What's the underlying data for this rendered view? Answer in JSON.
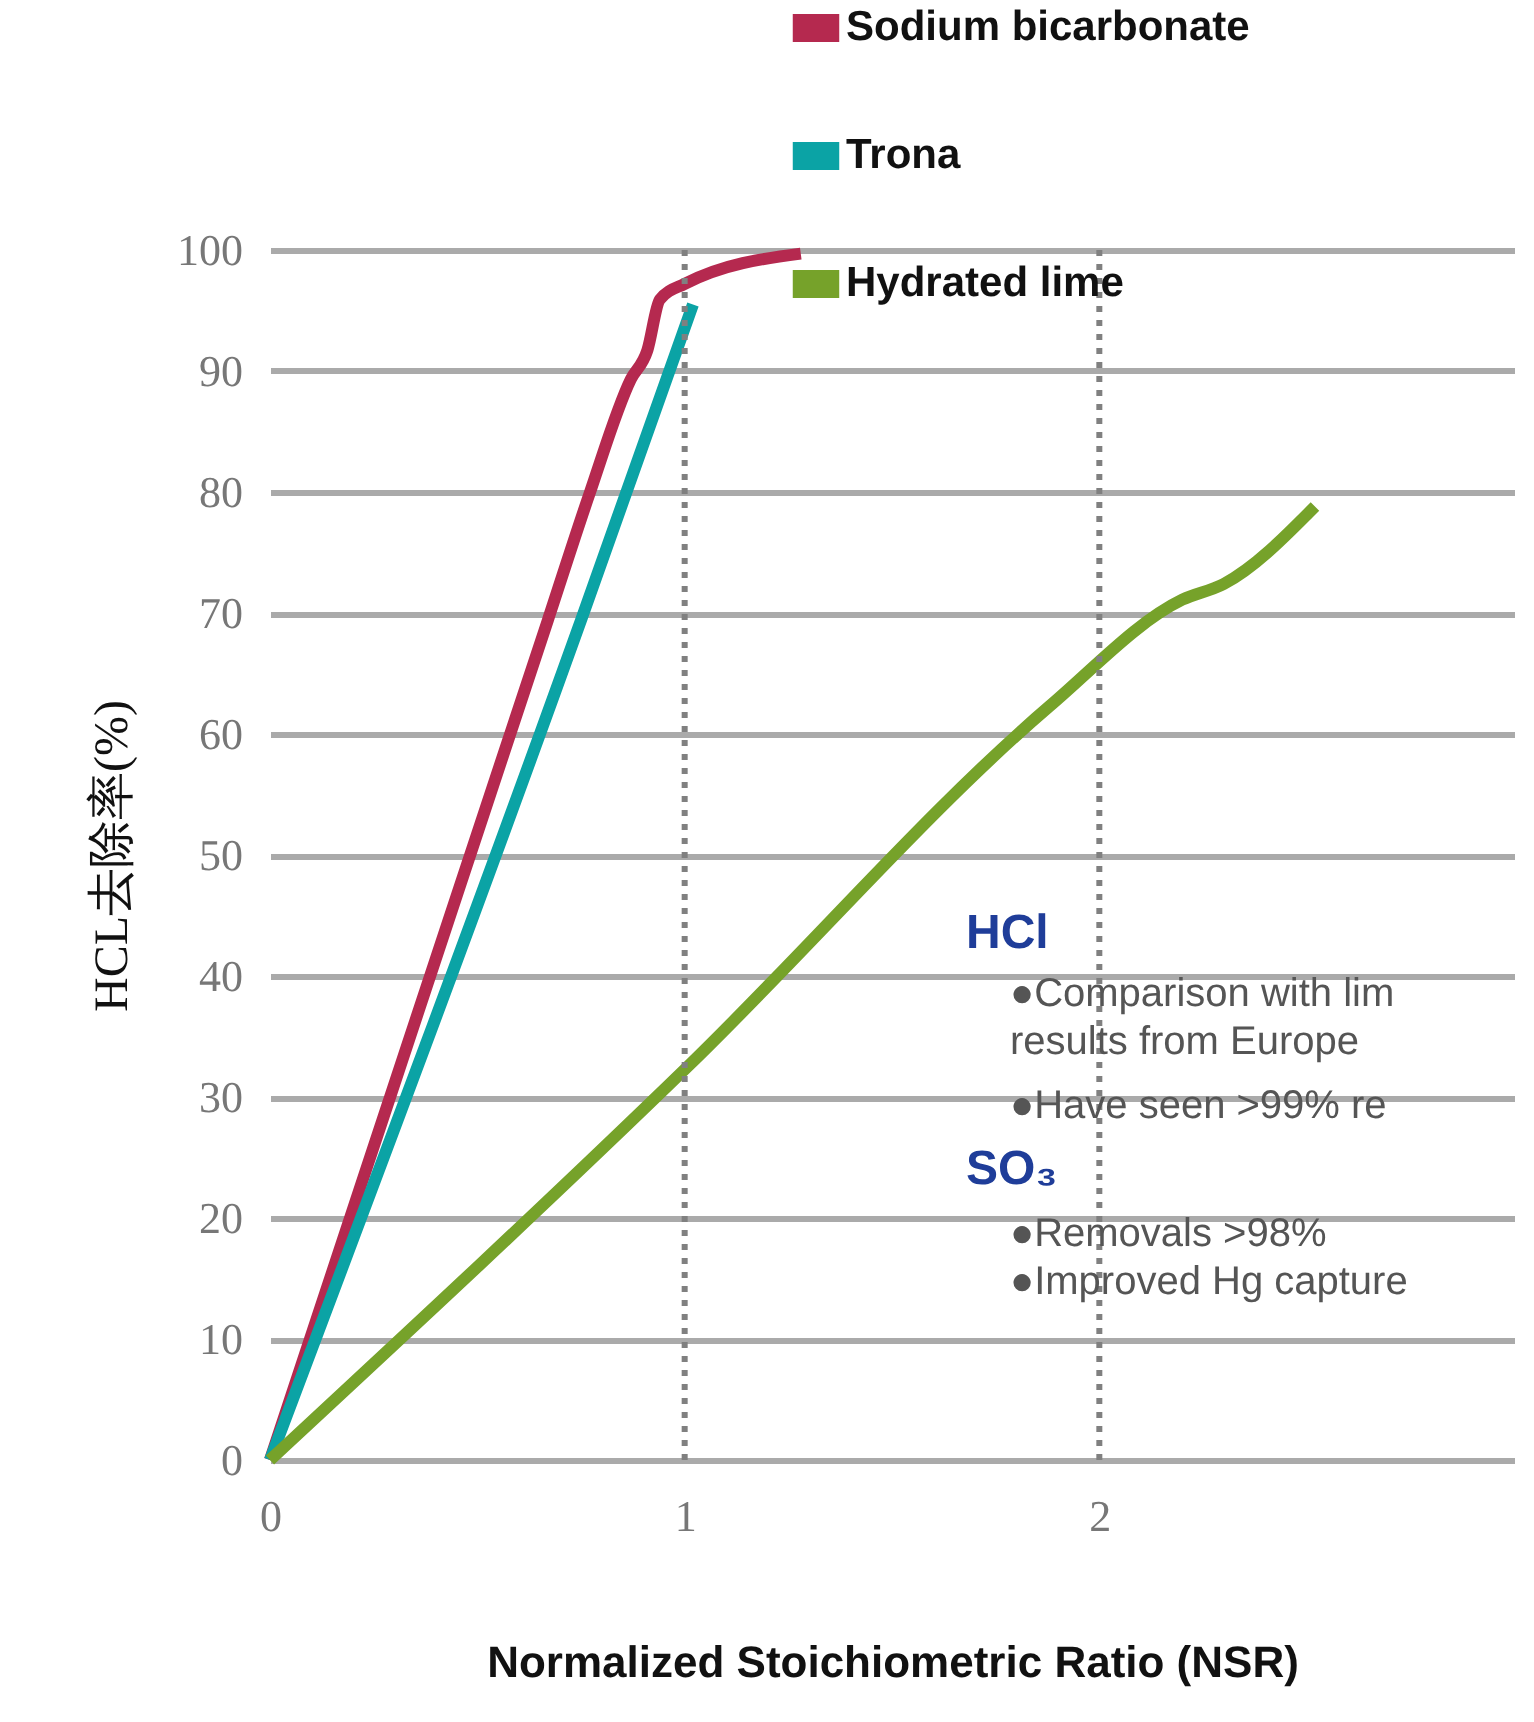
{
  "chart_data": {
    "type": "line",
    "xlabel": "Normalized Stoichiometric Ratio (NSR)",
    "ylabel": "HCL去除率(%)",
    "xlim": [
      0,
      3
    ],
    "xticks": [
      0,
      1,
      2
    ],
    "ylim": [
      0,
      100
    ],
    "yticks": [
      0,
      10,
      20,
      30,
      40,
      50,
      60,
      70,
      80,
      90,
      100
    ],
    "grid": "y",
    "legend": "top right",
    "line_style": "solid",
    "marker": "none",
    "series": [
      {
        "name": "Sodium bicarbonate",
        "color": "#b5294f",
        "x": [
          0,
          0.67,
          0.77,
          0.87,
          0.91,
          0.94,
          1.0,
          1.28
        ],
        "values": [
          0,
          69.4,
          79.8,
          89.3,
          91.7,
          95.9,
          97.2,
          99.7
        ]
      },
      {
        "name": "Trona",
        "color": "#0ba3a5",
        "x": [
          0,
          0.75,
          1.02
        ],
        "values": [
          0,
          69.4,
          95.5
        ]
      },
      {
        "name": "Hydrated lime",
        "color": "#76a22a",
        "x": [
          0,
          1.01,
          1.88,
          2.2,
          2.3,
          2.52
        ],
        "values": [
          0,
          32.6,
          62.3,
          71.1,
          72.4,
          78.8
        ]
      }
    ],
    "ref_lines": [
      {
        "axis": "x",
        "value": 1,
        "color": "#808080",
        "line_style": "dotted"
      },
      {
        "axis": "x",
        "value": 2,
        "color": "#808080",
        "line_style": "dotted"
      }
    ],
    "annotations": [
      "HCl",
      "●Comparison with lim",
      "results from Europe",
      "●Have seen >99% re",
      "SO₃",
      "●Removals >98%",
      "●Improved Hg capture"
    ]
  }
}
